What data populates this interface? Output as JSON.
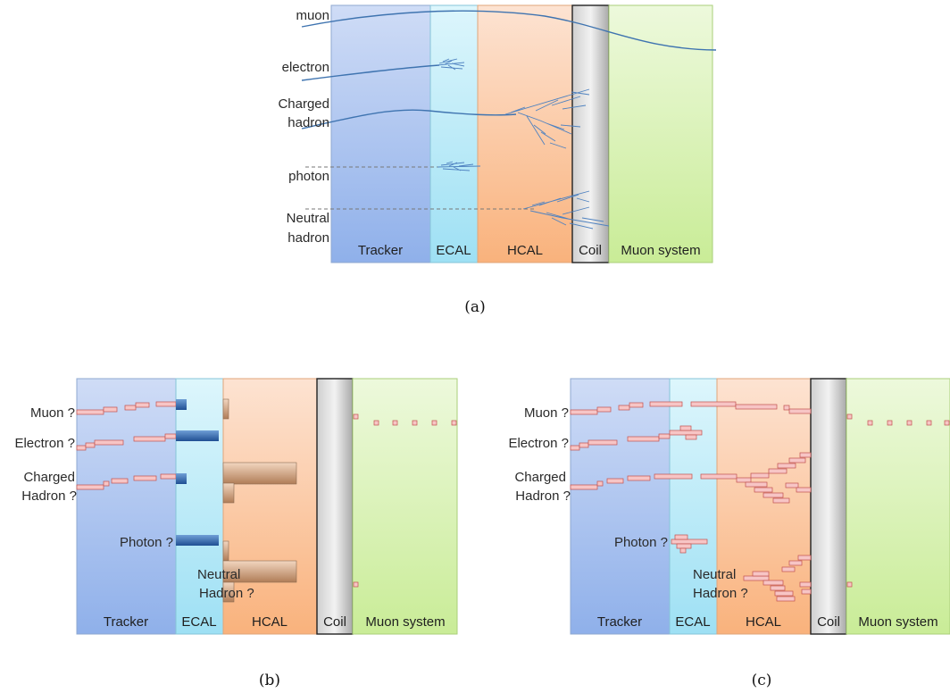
{
  "detector_layers": [
    "Tracker",
    "ECAL",
    "HCAL",
    "Coil",
    "Muon system"
  ],
  "panel_a": {
    "caption": "(a)",
    "particles": [
      "muon",
      "electron",
      "Charged",
      "hadron",
      "photon",
      "Neutral",
      "hadron"
    ]
  },
  "panel_b": {
    "caption": "(b)",
    "particles": [
      "Muon ?",
      "Electron ?",
      "Charged",
      "Hadron ?",
      "Photon ?",
      "Neutral",
      "Hadron ?"
    ]
  },
  "panel_c": {
    "caption": "(c)",
    "particles": [
      "Muon ?",
      "Electron ?",
      "Charged",
      "Hadron ?",
      "Photon ?",
      "Neutral",
      "Hadron ?"
    ]
  },
  "colors": {
    "tracker": "#b4c8f0",
    "ecal": "#c2eef9",
    "hcal": "#fbd0b0",
    "coil": "#d6d6d6",
    "muon": "#def3bc",
    "track": "#3f74b0",
    "hit": "#f7c5c5"
  }
}
